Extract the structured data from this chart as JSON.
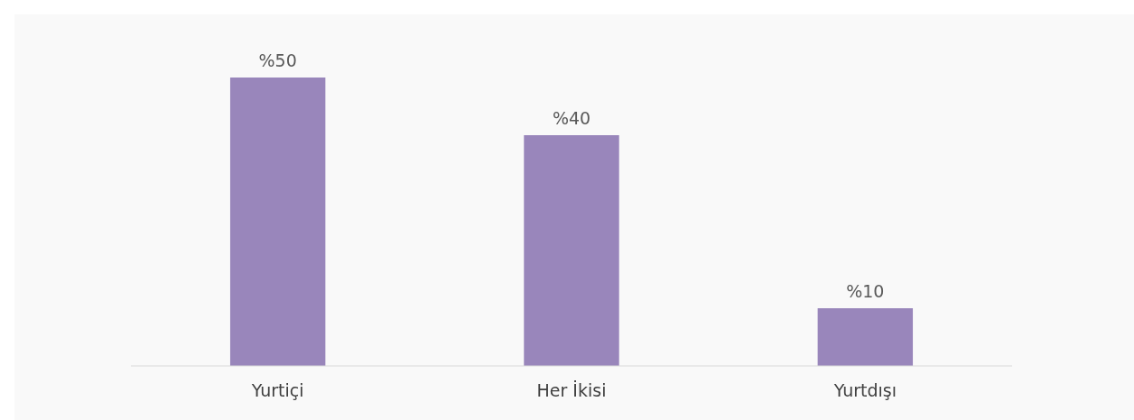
{
  "chart_data": {
    "type": "bar",
    "categories": [
      "Yurtiçi",
      "Her İkisi",
      "Yurtdışı"
    ],
    "values": [
      50,
      40,
      10
    ],
    "value_labels": [
      "%50",
      "%40",
      "%10"
    ],
    "color": "#9986bb"
  }
}
